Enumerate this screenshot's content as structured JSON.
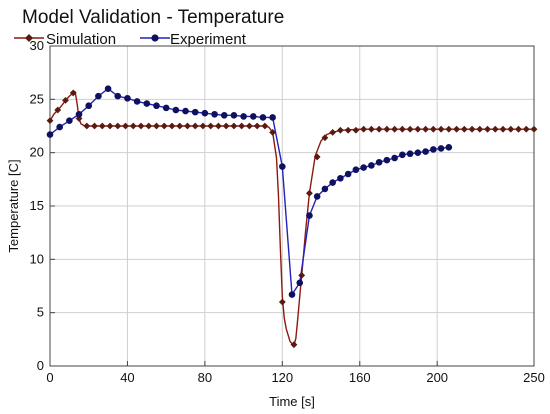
{
  "chart_data": {
    "type": "line",
    "title": "Model Validation - Temperature",
    "xlabel": "Time [s]",
    "ylabel": "Temperature [C]",
    "xlim": [
      0,
      250
    ],
    "ylim": [
      0,
      30
    ],
    "xticks": [
      0,
      40,
      80,
      120,
      160,
      200,
      250
    ],
    "yticks": [
      0,
      5,
      10,
      15,
      20,
      25,
      30
    ],
    "grid": true,
    "legend_position": "top-left",
    "series": [
      {
        "name": "Simulation",
        "color": "#8b1a0f",
        "marker": "diamond",
        "marker_color": "#5a1a10",
        "marker_step": 4,
        "curve": [
          [
            0,
            23
          ],
          [
            2,
            23.6
          ],
          [
            4,
            24
          ],
          [
            6,
            24.4
          ],
          [
            8,
            24.9
          ],
          [
            10,
            25.3
          ],
          [
            12,
            25.6
          ],
          [
            13,
            25.7
          ],
          [
            14,
            24.6
          ],
          [
            15,
            23.2
          ],
          [
            16,
            22.7
          ],
          [
            18,
            22.5
          ],
          [
            30,
            22.5
          ],
          [
            60,
            22.5
          ],
          [
            90,
            22.5
          ],
          [
            110,
            22.5
          ],
          [
            113,
            22.4
          ],
          [
            115,
            21.9
          ],
          [
            117,
            19.5
          ],
          [
            118,
            16
          ],
          [
            119,
            11
          ],
          [
            120,
            6.5
          ],
          [
            121,
            4.5
          ],
          [
            122,
            3.5
          ],
          [
            124,
            2.3
          ],
          [
            126,
            1.9
          ],
          [
            127,
            2.6
          ],
          [
            128,
            4.5
          ],
          [
            129,
            6.5
          ],
          [
            130,
            8.5
          ],
          [
            131,
            10.5
          ],
          [
            132,
            12.6
          ],
          [
            134,
            16.2
          ],
          [
            137,
            19.7
          ],
          [
            140,
            21.1
          ],
          [
            143,
            21.7
          ],
          [
            146,
            21.9
          ],
          [
            150,
            22.1
          ],
          [
            160,
            22.2
          ],
          [
            180,
            22.2
          ],
          [
            200,
            22.2
          ],
          [
            220,
            22.2
          ],
          [
            250,
            22.2
          ]
        ],
        "values": [
          [
            0,
            23
          ],
          [
            4,
            24
          ],
          [
            8,
            24.9
          ],
          [
            12,
            25.6
          ],
          [
            15,
            23.2
          ],
          [
            19,
            22.5
          ],
          [
            23,
            22.5
          ],
          [
            27,
            22.5
          ],
          [
            31,
            22.5
          ],
          [
            35,
            22.5
          ],
          [
            39,
            22.5
          ],
          [
            43,
            22.5
          ],
          [
            47,
            22.5
          ],
          [
            51,
            22.5
          ],
          [
            55,
            22.5
          ],
          [
            59,
            22.5
          ],
          [
            63,
            22.5
          ],
          [
            67,
            22.5
          ],
          [
            71,
            22.5
          ],
          [
            75,
            22.5
          ],
          [
            79,
            22.5
          ],
          [
            83,
            22.5
          ],
          [
            87,
            22.5
          ],
          [
            91,
            22.5
          ],
          [
            95,
            22.5
          ],
          [
            99,
            22.5
          ],
          [
            103,
            22.5
          ],
          [
            107,
            22.5
          ],
          [
            111,
            22.5
          ],
          [
            115,
            21.9
          ],
          [
            120,
            6
          ],
          [
            126,
            2
          ],
          [
            130,
            8.5
          ],
          [
            134,
            16.2
          ],
          [
            138,
            19.6
          ],
          [
            142,
            21.4
          ],
          [
            146,
            21.9
          ],
          [
            150,
            22.1
          ],
          [
            154,
            22.1
          ],
          [
            158,
            22.1
          ],
          [
            162,
            22.2
          ],
          [
            166,
            22.2
          ],
          [
            170,
            22.2
          ],
          [
            174,
            22.2
          ],
          [
            178,
            22.2
          ],
          [
            182,
            22.2
          ],
          [
            186,
            22.2
          ],
          [
            190,
            22.2
          ],
          [
            194,
            22.2
          ],
          [
            198,
            22.2
          ],
          [
            202,
            22.2
          ],
          [
            206,
            22.2
          ],
          [
            210,
            22.2
          ],
          [
            214,
            22.2
          ],
          [
            218,
            22.2
          ],
          [
            222,
            22.2
          ],
          [
            226,
            22.2
          ],
          [
            230,
            22.2
          ],
          [
            234,
            22.2
          ],
          [
            238,
            22.2
          ],
          [
            242,
            22.2
          ],
          [
            246,
            22.2
          ],
          [
            250,
            22.2
          ]
        ]
      },
      {
        "name": "Experiment",
        "color": "#2222bb",
        "marker": "circle",
        "marker_color": "#101060",
        "values": [
          [
            0,
            21.7
          ],
          [
            5,
            22.4
          ],
          [
            10,
            23
          ],
          [
            15,
            23.6
          ],
          [
            20,
            24.4
          ],
          [
            25,
            25.3
          ],
          [
            30,
            26
          ],
          [
            35,
            25.3
          ],
          [
            40,
            25.1
          ],
          [
            45,
            24.8
          ],
          [
            50,
            24.6
          ],
          [
            55,
            24.4
          ],
          [
            60,
            24.2
          ],
          [
            65,
            24
          ],
          [
            70,
            23.9
          ],
          [
            75,
            23.8
          ],
          [
            80,
            23.7
          ],
          [
            85,
            23.6
          ],
          [
            90,
            23.5
          ],
          [
            95,
            23.5
          ],
          [
            100,
            23.4
          ],
          [
            105,
            23.4
          ],
          [
            110,
            23.3
          ],
          [
            115,
            23.3
          ],
          [
            120,
            18.7
          ],
          [
            125,
            6.7
          ],
          [
            129,
            7.8
          ],
          [
            134,
            14.1
          ],
          [
            138,
            15.9
          ],
          [
            142,
            16.6
          ],
          [
            146,
            17.2
          ],
          [
            150,
            17.6
          ],
          [
            154,
            18
          ],
          [
            158,
            18.4
          ],
          [
            162,
            18.6
          ],
          [
            166,
            18.8
          ],
          [
            170,
            19.1
          ],
          [
            174,
            19.3
          ],
          [
            178,
            19.5
          ],
          [
            182,
            19.8
          ],
          [
            186,
            19.9
          ],
          [
            190,
            20
          ],
          [
            194,
            20.1
          ],
          [
            198,
            20.3
          ],
          [
            202,
            20.4
          ],
          [
            206,
            20.5
          ]
        ]
      }
    ]
  }
}
